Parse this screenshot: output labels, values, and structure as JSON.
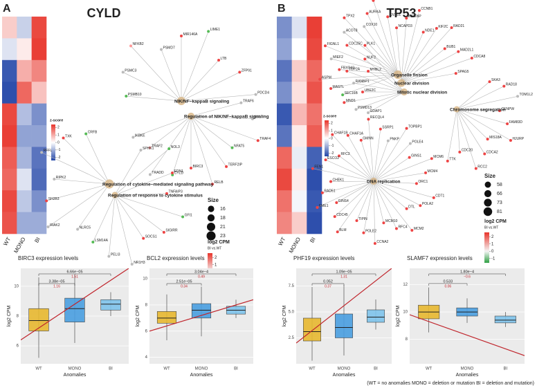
{
  "panels": [
    {
      "label": "A",
      "title": "CYLD",
      "heatmap": {
        "columns": [
          "WT",
          "MONO",
          "BI"
        ],
        "z": [
          [
            0.5,
            -0.5,
            1.8
          ],
          [
            -0.3,
            0.2,
            1.9
          ],
          [
            -1.8,
            0.8,
            1.2
          ],
          [
            -1.9,
            1.5,
            0.6
          ],
          [
            1.8,
            -0.7,
            -1.2
          ],
          [
            1.9,
            -1.0,
            -1.0
          ],
          [
            1.6,
            -0.8,
            -1.5
          ],
          [
            1.5,
            -0.3,
            -1.6
          ],
          [
            1.8,
            -0.6,
            -1.2
          ],
          [
            1.7,
            -0.9,
            -0.9
          ]
        ],
        "legend": {
          "title": "z-score",
          "range": [
            -2.4,
            2.4
          ],
          "ticks": [
            2,
            1,
            0,
            -1,
            -2
          ]
        }
      },
      "terms": [
        {
          "label": "NIK/NF−kappaB signaling",
          "size": 21
        },
        {
          "label": "Regulation of NIK/NF−kappaB signaling",
          "size": 18
        },
        {
          "label": "Regulation of cytokine−mediated signaling pathway",
          "size": 23
        },
        {
          "label": "Regulation of response to cytokine stimulus",
          "size": 16
        }
      ],
      "genes": [
        {
          "label": "PSMB10",
          "term": 0,
          "color": "#5b5"
        },
        {
          "label": "PSMC3",
          "term": 0,
          "color": "#bbb"
        },
        {
          "label": "NFKB2",
          "term": 0,
          "color": "#f99"
        },
        {
          "label": "PSMD7",
          "term": 0,
          "color": "#bbb"
        },
        {
          "label": "MIR146A",
          "term": 0,
          "color": "#e44"
        },
        {
          "label": "LIME1",
          "term": 0,
          "color": "#5b5"
        },
        {
          "label": "LTB",
          "term": 0,
          "color": "#e44"
        },
        {
          "label": "ZFP91",
          "term": 0,
          "color": "#e44"
        },
        {
          "label": "PDCD4",
          "term": 0,
          "color": "#bbb"
        },
        {
          "label": "TRAF6",
          "term": 1,
          "color": "#bbb"
        },
        {
          "label": "ILK",
          "term": 1,
          "color": "#bbb"
        },
        {
          "label": "TRAF4",
          "term": 1,
          "color": "#e44"
        },
        {
          "label": "NFAT5",
          "term": 1,
          "color": "#5b5"
        },
        {
          "label": "TERF2IP",
          "term": 1,
          "color": "#e44"
        },
        {
          "label": "RELB",
          "term": 1,
          "color": "#e44"
        },
        {
          "label": "BIRC3",
          "term": 1,
          "color": "#e44"
        },
        {
          "label": "CYLD",
          "term": 1,
          "color": "#5b5"
        },
        {
          "label": "TRADD",
          "term": 1,
          "color": "#bbb"
        },
        {
          "label": "TRAF2",
          "term": 1,
          "color": "#f99"
        },
        {
          "label": "IKBKE",
          "term": 1,
          "color": "#bbb"
        },
        {
          "label": "CRFB",
          "term": 2,
          "color": "#5b5"
        },
        {
          "label": "TXK",
          "term": 2,
          "color": "#e44"
        },
        {
          "label": "RFFL",
          "term": 2,
          "color": "#bbb"
        },
        {
          "label": "RIPK2",
          "term": 2,
          "color": "#bbb"
        },
        {
          "label": "SH2B3",
          "term": 2,
          "color": "#e44"
        },
        {
          "label": "IRAK2",
          "term": 2,
          "color": "#bbb"
        },
        {
          "label": "NLRC5",
          "term": 2,
          "color": "#bbb"
        },
        {
          "label": "LSM14A",
          "term": 3,
          "color": "#5b5"
        },
        {
          "label": "PELI3",
          "term": 3,
          "color": "#bbb"
        },
        {
          "label": "NR1H3",
          "term": 3,
          "color": "#bbb"
        },
        {
          "label": "SOCS1",
          "term": 3,
          "color": "#e44"
        },
        {
          "label": "SIGIRR",
          "term": 3,
          "color": "#e44"
        },
        {
          "label": "GFI1",
          "term": 3,
          "color": "#5b5"
        },
        {
          "label": "TNFAIP3",
          "term": 3,
          "color": "#e44"
        },
        {
          "label": "EDN1",
          "term": 3,
          "color": "#e44"
        },
        {
          "label": "NOL3",
          "term": 3,
          "color": "#5b5"
        },
        {
          "label": "SPHK1",
          "term": 3,
          "color": "#bbb"
        }
      ],
      "size_legend": {
        "title": "Size",
        "values": [
          16,
          18,
          21,
          23
        ]
      },
      "cpm_legend": {
        "title": "log2 CPM",
        "subtitle": "BI vs.WT",
        "range": [
          -1.6,
          2.6
        ],
        "ticks": [
          2,
          1,
          0,
          -1
        ]
      }
    },
    {
      "label": "B",
      "title": "TP53",
      "heatmap": {
        "columns": [
          "WT",
          "MONO",
          "BI"
        ],
        "z": [
          [
            -1.2,
            -0.3,
            1.9
          ],
          [
            -1.0,
            0.0,
            1.8
          ],
          [
            -1.5,
            0.5,
            1.5
          ],
          [
            -1.2,
            0.3,
            1.7
          ],
          [
            -1.8,
            0.7,
            1.4
          ],
          [
            -1.5,
            0.2,
            1.6
          ],
          [
            1.5,
            -0.2,
            -1.7
          ],
          [
            1.8,
            0.2,
            -1.9
          ],
          [
            1.4,
            -0.1,
            -1.8
          ],
          [
            1.2,
            0.5,
            -1.9
          ]
        ],
        "legend": {
          "title": "z-score",
          "range": [
            -2.4,
            2.4
          ],
          "ticks": [
            2,
            1,
            0,
            -1,
            -2
          ]
        }
      },
      "terms": [
        {
          "label": "Organelle fission",
          "size": 81
        },
        {
          "label": "Nuclear division",
          "size": 73
        },
        {
          "label": "Mitotic nuclear division",
          "size": 66
        },
        {
          "label": "Chromosome segregation",
          "size": 58
        },
        {
          "label": "DNA replication",
          "size": 66
        }
      ],
      "genes": [
        {
          "label": "SEC16B",
          "term": 0,
          "color": "#5b5"
        },
        {
          "label": "MASTL",
          "term": 0,
          "color": "#e44"
        },
        {
          "label": "ASPM",
          "term": 0,
          "color": "#e44"
        },
        {
          "label": "FBXO43",
          "term": 0,
          "color": "#e44"
        },
        {
          "label": "MIEF2",
          "term": 0,
          "color": "#bbb"
        },
        {
          "label": "FIGNL1",
          "term": 0,
          "color": "#e44"
        },
        {
          "label": "CDC25C",
          "term": 0,
          "color": "#e44"
        },
        {
          "label": "ACOT8",
          "term": 0,
          "color": "#bbb"
        },
        {
          "label": "TPX2",
          "term": 0,
          "color": "#e44"
        },
        {
          "label": "COX10",
          "term": 0,
          "color": "#bbb"
        },
        {
          "label": "AURKA",
          "term": 0,
          "color": "#e44"
        },
        {
          "label": "MTFR2",
          "term": 0,
          "color": "#e44"
        },
        {
          "label": "KNTC1",
          "term": 0,
          "color": "#e44"
        },
        {
          "label": "NCAPD3",
          "term": 1,
          "color": "#e44"
        },
        {
          "label": "INCENP",
          "term": 1,
          "color": "#e44"
        },
        {
          "label": "CCNB1",
          "term": 1,
          "color": "#e44"
        },
        {
          "label": "NDE1",
          "term": 1,
          "color": "#e44"
        },
        {
          "label": "KIF2C",
          "term": 1,
          "color": "#e44"
        },
        {
          "label": "RAD21",
          "term": 1,
          "color": "#e44"
        },
        {
          "label": "BUB1",
          "term": 1,
          "color": "#e44"
        },
        {
          "label": "MAD2L1",
          "term": 1,
          "color": "#e44"
        },
        {
          "label": "CDCA8",
          "term": 1,
          "color": "#e44"
        },
        {
          "label": "SPAG5",
          "term": 1,
          "color": "#e44"
        },
        {
          "label": "GDAP1",
          "term": 2,
          "color": "#bbb"
        },
        {
          "label": "PSMD13",
          "term": 2,
          "color": "#bbb"
        },
        {
          "label": "MND1",
          "term": 2,
          "color": "#e44"
        },
        {
          "label": "UBE2C",
          "term": 2,
          "color": "#e44"
        },
        {
          "label": "RANBP1",
          "term": 2,
          "color": "#bbb"
        },
        {
          "label": "TOP2A",
          "term": 2,
          "color": "#e44"
        },
        {
          "label": "MYBL2",
          "term": 2,
          "color": "#e44"
        },
        {
          "label": "NUF2",
          "term": 2,
          "color": "#e44"
        },
        {
          "label": "PLK1",
          "term": 2,
          "color": "#e44"
        },
        {
          "label": "SKA3",
          "term": 3,
          "color": "#e44"
        },
        {
          "label": "RAD18",
          "term": 3,
          "color": "#e44"
        },
        {
          "label": "TOM1L2",
          "term": 3,
          "color": "#bbb"
        },
        {
          "label": "CENPW",
          "term": 3,
          "color": "#e44"
        },
        {
          "label": "FAM83D",
          "term": 3,
          "color": "#e44"
        },
        {
          "label": "HJURP",
          "term": 3,
          "color": "#e44"
        },
        {
          "label": "MIS18A",
          "term": 3,
          "color": "#e44"
        },
        {
          "label": "CDCA2",
          "term": 3,
          "color": "#e44"
        },
        {
          "label": "RCC2",
          "term": 3,
          "color": "#e44"
        },
        {
          "label": "CDC20",
          "term": 3,
          "color": "#e44"
        },
        {
          "label": "TTK",
          "term": 3,
          "color": "#e44"
        },
        {
          "label": "GINS4",
          "term": 4,
          "color": "#e44"
        },
        {
          "label": "CDC45",
          "term": 4,
          "color": "#e44"
        },
        {
          "label": "BLM",
          "term": 4,
          "color": "#e44"
        },
        {
          "label": "TIPIN",
          "term": 4,
          "color": "#e44"
        },
        {
          "label": "POLE2",
          "term": 4,
          "color": "#e44"
        },
        {
          "label": "CCNA2",
          "term": 4,
          "color": "#e44"
        },
        {
          "label": "MCM10",
          "term": 4,
          "color": "#e44"
        },
        {
          "label": "RFC4",
          "term": 4,
          "color": "#e44"
        },
        {
          "label": "MCM2",
          "term": 4,
          "color": "#e44"
        },
        {
          "label": "DTL",
          "term": 4,
          "color": "#e44"
        },
        {
          "label": "POLA2",
          "term": 4,
          "color": "#e44"
        },
        {
          "label": "CDT1",
          "term": 4,
          "color": "#e44"
        },
        {
          "label": "ORC1",
          "term": 4,
          "color": "#e44"
        },
        {
          "label": "MCM4",
          "term": 4,
          "color": "#e44"
        },
        {
          "label": "MCM6",
          "term": 4,
          "color": "#e44"
        },
        {
          "label": "GINS1",
          "term": 4,
          "color": "#e44"
        },
        {
          "label": "POLE4",
          "term": 4,
          "color": "#bbb"
        },
        {
          "label": "TOPBP1",
          "term": 4,
          "color": "#e44"
        },
        {
          "label": "PNKP",
          "term": 4,
          "color": "#bbb"
        },
        {
          "label": "SSRP1",
          "term": 4,
          "color": "#e44"
        },
        {
          "label": "RECQL4",
          "term": 4,
          "color": "#e44"
        },
        {
          "label": "GMNN",
          "term": 4,
          "color": "#e44"
        },
        {
          "label": "CHAF1A",
          "term": 4,
          "color": "#e44"
        },
        {
          "label": "CHAF1B",
          "term": 4,
          "color": "#e44"
        },
        {
          "label": "RFC3",
          "term": 4,
          "color": "#e44"
        },
        {
          "label": "ESCO2",
          "term": 4,
          "color": "#e44"
        },
        {
          "label": "FEN1",
          "term": 4,
          "color": "#e44"
        },
        {
          "label": "CHEK1",
          "term": 4,
          "color": "#e44"
        },
        {
          "label": "RAD51",
          "term": 4,
          "color": "#e44"
        },
        {
          "label": "EME1",
          "term": 4,
          "color": "#e44"
        }
      ],
      "size_legend": {
        "title": "Size",
        "values": [
          58,
          66,
          73,
          81
        ]
      },
      "cpm_legend": {
        "title": "log2 CPM",
        "subtitle": "BI vs.WT",
        "range": [
          -1.6,
          2.6
        ],
        "ticks": [
          2,
          1,
          0,
          -1
        ]
      }
    }
  ],
  "chart_data": [
    {
      "type": "box",
      "title": "BIRC3 expression levels",
      "x_label": "Anomalies",
      "y_label": "log2 CPM",
      "categories": [
        "WT",
        "MONO",
        "BI"
      ],
      "colors": [
        "#e8b930",
        "#4a9fe0",
        "#7fc4ec"
      ],
      "boxes": [
        {
          "whislo": 5.2,
          "q1": 7.0,
          "med": 7.7,
          "q3": 8.5,
          "whishi": 10.6
        },
        {
          "whislo": 6.2,
          "q1": 7.6,
          "med": 8.5,
          "q3": 9.2,
          "whishi": 10.8
        },
        {
          "whislo": 8.0,
          "q1": 8.4,
          "med": 8.8,
          "q3": 9.1,
          "whishi": 9.6
        }
      ],
      "ylim": [
        4.8,
        11.2
      ],
      "yticks": [
        6,
        8,
        10
      ],
      "trend": [
        6.4,
        11.2
      ],
      "trend_color": "#c0262d",
      "comparisons": [
        {
          "p": "3.38e−05",
          "fc": "1.16"
        },
        {
          "p": "6.66e−05",
          "fc": "1.51"
        }
      ]
    },
    {
      "type": "box",
      "title": "BCL2 expression levels",
      "x_label": "Anomalies",
      "y_label": "log2 CPM",
      "categories": [
        "WT",
        "MONO",
        "BI"
      ],
      "colors": [
        "#e8b930",
        "#4a9fe0",
        "#7fc4ec"
      ],
      "boxes": [
        {
          "whislo": 5.3,
          "q1": 6.6,
          "med": 7.0,
          "q3": 7.5,
          "whishi": 8.8
        },
        {
          "whislo": 5.6,
          "q1": 7.0,
          "med": 7.6,
          "q3": 8.1,
          "whishi": 9.4
        },
        {
          "whislo": 7.0,
          "q1": 7.3,
          "med": 7.6,
          "q3": 7.9,
          "whishi": 8.4
        }
      ],
      "ylim": [
        3.5,
        10.8
      ],
      "yticks": [
        4,
        6,
        8,
        10
      ],
      "trend": [
        6.0,
        8.4
      ],
      "trend_color": "#c0262d",
      "comparisons": [
        {
          "p": "2.51e−05",
          "fc": "0.34"
        },
        {
          "p": "3.04e−4",
          "fc": "0.49"
        }
      ]
    },
    {
      "type": "box",
      "title": "PHF19 expression levels",
      "x_label": "Anomalies",
      "y_label": "log2 CPM",
      "categories": [
        "WT",
        "MONO",
        "BI"
      ],
      "colors": [
        "#e8b930",
        "#4a9fe0",
        "#7fc4ec"
      ],
      "boxes": [
        {
          "whislo": 0.3,
          "q1": 2.2,
          "med": 3.1,
          "q3": 4.4,
          "whishi": 7.4
        },
        {
          "whislo": 0.8,
          "q1": 2.5,
          "med": 3.5,
          "q3": 4.8,
          "whishi": 7.6
        },
        {
          "whislo": 3.3,
          "q1": 4.0,
          "med": 4.5,
          "q3": 5.2,
          "whishi": 6.2
        }
      ],
      "ylim": [
        0,
        9.2
      ],
      "yticks": [
        {
          "value": 2.5,
          "label": "2.5"
        },
        {
          "value": 5,
          "label": "5.0"
        },
        {
          "value": 7.5,
          "label": "7.5"
        }
      ],
      "trend": [
        2.0,
        9.2
      ],
      "trend_color": "#c0262d",
      "comparisons": [
        {
          "p": "0.052",
          "fc": "0.37"
        },
        {
          "p": "1.09e−05",
          "fc": "1.31"
        }
      ]
    },
    {
      "type": "box",
      "title": "SLAMF7 expression levels",
      "x_label": "Anomalies",
      "y_label": "log2 CPM",
      "categories": [
        "WT",
        "MONO",
        "BI"
      ],
      "colors": [
        "#e8b930",
        "#4a9fe0",
        "#7fc4ec"
      ],
      "boxes": [
        {
          "whislo": 8.5,
          "q1": 9.5,
          "med": 10.0,
          "q3": 10.5,
          "whishi": 11.8
        },
        {
          "whislo": 9.2,
          "q1": 9.7,
          "med": 10.0,
          "q3": 10.3,
          "whishi": 11.0
        },
        {
          "whislo": 8.9,
          "q1": 9.2,
          "med": 9.4,
          "q3": 9.7,
          "whishi": 10.0
        }
      ],
      "ylim": [
        6.2,
        13.2
      ],
      "yticks": [
        8,
        10,
        12
      ],
      "trend": [
        9.8,
        6.8
      ],
      "trend_color": "#c0262d",
      "comparisons": [
        {
          "p": "0.533",
          "fc": "0.06"
        },
        {
          "p": "1.80e−4",
          "fc": "−0.6"
        }
      ]
    }
  ],
  "footnote": "(WT = no anomalies  MONO = deletion or mutation  BI = deletion and mutation)"
}
